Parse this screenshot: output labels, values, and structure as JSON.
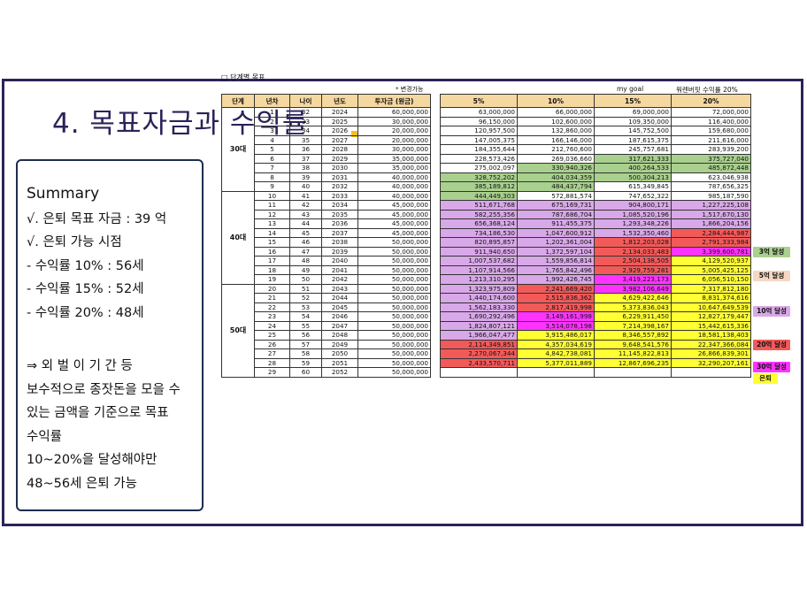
{
  "title": "4. 목표자금과 수익률",
  "summary": {
    "heading": "Summary",
    "line1": "√. 은퇴 목표 자금 : 39 억",
    "line2": "√. 은퇴 가능 시점",
    "line3": " - 수익률 10% : 56세",
    "line4": " - 수익률 15% : 52세",
    "line5": " - 수익률 20% : 48세",
    "line6": "⇒  외 벌 이  기 간  등",
    "line7": "보수적으로 종잣돈을 모을 수",
    "line8": "있는 금액을 기준으로 목표",
    "line9": "수익률",
    "line10": "10~20%을 달성해야만",
    "line11": "48~56세 은퇴 가능"
  },
  "section_label": "□ 단계별 목표",
  "note_change": "* 변경가능",
  "note_goal": "my goal",
  "note_rate": "워렌버핏 수익률 20%",
  "headers_left": [
    "단계",
    "년차",
    "나이",
    "년도",
    "투자금 (원금)"
  ],
  "headers_right": [
    "5%",
    "10%",
    "15%",
    "20%"
  ],
  "stages": [
    "30대",
    "40대",
    "50대"
  ],
  "rows": [
    {
      "n": "1",
      "age": "32",
      "year": "2024",
      "inv": "60,000,000",
      "r5": "63,000,000",
      "r10": "66,000,000",
      "r15": "69,000,000",
      "r20": "72,000,000"
    },
    {
      "n": "2",
      "age": "33",
      "year": "2025",
      "inv": "30,000,000",
      "r5": "96,150,000",
      "r10": "102,600,000",
      "r15": "109,350,000",
      "r20": "116,400,000"
    },
    {
      "n": "3",
      "age": "34",
      "year": "2026",
      "inv": "20,000,000",
      "r5": "120,957,500",
      "r10": "132,860,000",
      "r15": "145,752,500",
      "r20": "159,680,000"
    },
    {
      "n": "4",
      "age": "35",
      "year": "2027",
      "inv": "20,000,000",
      "r5": "147,005,375",
      "r10": "166,146,000",
      "r15": "187,615,375",
      "r20": "211,616,000"
    },
    {
      "n": "5",
      "age": "36",
      "year": "2028",
      "inv": "30,000,000",
      "r5": "184,355,644",
      "r10": "212,760,600",
      "r15": "245,757,681",
      "r20": "283,939,200"
    },
    {
      "n": "6",
      "age": "37",
      "year": "2029",
      "inv": "35,000,000",
      "r5": "228,573,426",
      "r10": "269,036,660",
      "r15": "317,621,333",
      "r20": "375,727,040"
    },
    {
      "n": "7",
      "age": "38",
      "year": "2030",
      "inv": "35,000,000",
      "r5": "275,002,097",
      "r10": "330,940,326",
      "r15": "400,264,533",
      "r20": "485,872,448"
    },
    {
      "n": "8",
      "age": "39",
      "year": "2031",
      "inv": "40,000,000",
      "r5": "328,752,202",
      "r10": "404,034,359",
      "r15": "500,304,213",
      "r20": "623,046,938"
    },
    {
      "n": "9",
      "age": "40",
      "year": "2032",
      "inv": "40,000,000",
      "r5": "385,189,812",
      "r10": "484,437,794",
      "r15": "615,349,845",
      "r20": "787,656,325"
    },
    {
      "n": "10",
      "age": "41",
      "year": "2033",
      "inv": "40,000,000",
      "r5": "444,449,303",
      "r10": "572,881,574",
      "r15": "747,652,322",
      "r20": "985,187,590"
    },
    {
      "n": "11",
      "age": "42",
      "year": "2034",
      "inv": "45,000,000",
      "r5": "511,671,768",
      "r10": "675,169,731",
      "r15": "904,800,171",
      "r20": "1,227,225,108"
    },
    {
      "n": "12",
      "age": "43",
      "year": "2035",
      "inv": "45,000,000",
      "r5": "582,255,356",
      "r10": "787,686,704",
      "r15": "1,085,520,196",
      "r20": "1,517,670,130"
    },
    {
      "n": "13",
      "age": "44",
      "year": "2036",
      "inv": "45,000,000",
      "r5": "656,368,124",
      "r10": "911,455,375",
      "r15": "1,293,348,226",
      "r20": "1,866,204,156"
    },
    {
      "n": "14",
      "age": "45",
      "year": "2037",
      "inv": "45,000,000",
      "r5": "734,186,530",
      "r10": "1,047,600,912",
      "r15": "1,532,350,460",
      "r20": "2,284,444,987"
    },
    {
      "n": "15",
      "age": "46",
      "year": "2038",
      "inv": "50,000,000",
      "r5": "820,895,857",
      "r10": "1,202,361,004",
      "r15": "1,812,203,028",
      "r20": "2,791,333,984"
    },
    {
      "n": "16",
      "age": "47",
      "year": "2039",
      "inv": "50,000,000",
      "r5": "911,940,650",
      "r10": "1,372,597,104",
      "r15": "2,134,033,483",
      "r20": "3,399,600,781"
    },
    {
      "n": "17",
      "age": "48",
      "year": "2040",
      "inv": "50,000,000",
      "r5": "1,007,537,682",
      "r10": "1,559,856,814",
      "r15": "2,504,138,505",
      "r20": "4,129,520,937"
    },
    {
      "n": "18",
      "age": "49",
      "year": "2041",
      "inv": "50,000,000",
      "r5": "1,107,914,566",
      "r10": "1,765,842,496",
      "r15": "2,929,759,281",
      "r20": "5,005,425,125"
    },
    {
      "n": "19",
      "age": "50",
      "year": "2042",
      "inv": "50,000,000",
      "r5": "1,213,310,295",
      "r10": "1,992,426,745",
      "r15": "3,419,223,173",
      "r20": "6,056,510,150"
    },
    {
      "n": "20",
      "age": "51",
      "year": "2043",
      "inv": "50,000,000",
      "r5": "1,323,975,809",
      "r10": "2,241,669,420",
      "r15": "3,982,106,649",
      "r20": "7,317,812,180"
    },
    {
      "n": "21",
      "age": "52",
      "year": "2044",
      "inv": "50,000,000",
      "r5": "1,440,174,600",
      "r10": "2,515,836,362",
      "r15": "4,629,422,646",
      "r20": "8,831,374,616"
    },
    {
      "n": "22",
      "age": "53",
      "year": "2045",
      "inv": "50,000,000",
      "r5": "1,562,183,330",
      "r10": "2,817,419,998",
      "r15": "5,373,836,043",
      "r20": "10,647,649,539"
    },
    {
      "n": "23",
      "age": "54",
      "year": "2046",
      "inv": "50,000,000",
      "r5": "1,690,292,496",
      "r10": "3,149,161,998",
      "r15": "6,229,911,450",
      "r20": "12,827,179,447"
    },
    {
      "n": "24",
      "age": "55",
      "year": "2047",
      "inv": "50,000,000",
      "r5": "1,824,807,121",
      "r10": "3,514,078,198",
      "r15": "7,214,398,167",
      "r20": "15,442,615,336"
    },
    {
      "n": "25",
      "age": "56",
      "year": "2048",
      "inv": "50,000,000",
      "r5": "1,966,047,477",
      "r10": "3,915,486,017",
      "r15": "8,346,557,892",
      "r20": "18,581,138,403"
    },
    {
      "n": "26",
      "age": "57",
      "year": "2049",
      "inv": "50,000,000",
      "r5": "2,114,349,851",
      "r10": "4,357,034,619",
      "r15": "9,648,541,576",
      "r20": "22,347,366,084"
    },
    {
      "n": "27",
      "age": "58",
      "year": "2050",
      "inv": "50,000,000",
      "r5": "2,270,067,344",
      "r10": "4,842,738,081",
      "r15": "11,145,822,813",
      "r20": "26,866,839,301"
    },
    {
      "n": "28",
      "age": "59",
      "year": "2051",
      "inv": "50,000,000",
      "r5": "2,433,570,711",
      "r10": "5,377,011,889",
      "r15": "12,867,696,235",
      "r20": "32,290,207,161"
    },
    {
      "n": "29",
      "age": "60",
      "year": "2052",
      "inv": "50,000,000",
      "r5": "",
      "r10": "",
      "r15": "",
      "r20": ""
    }
  ],
  "badges": {
    "b3": "3억 달성",
    "b5": "5억 달성",
    "b10": "10억 달성",
    "b20": "20억 달성",
    "b30": "30억 달성",
    "retire": "은퇴"
  },
  "colors": {
    "green": "#a9d08e",
    "purple": "#d9a8e8",
    "red": "#f25a5a",
    "magenta": "#ff33ff",
    "yellow": "#ffff33",
    "header": "#f5d8a0",
    "title": "#2c2259"
  }
}
